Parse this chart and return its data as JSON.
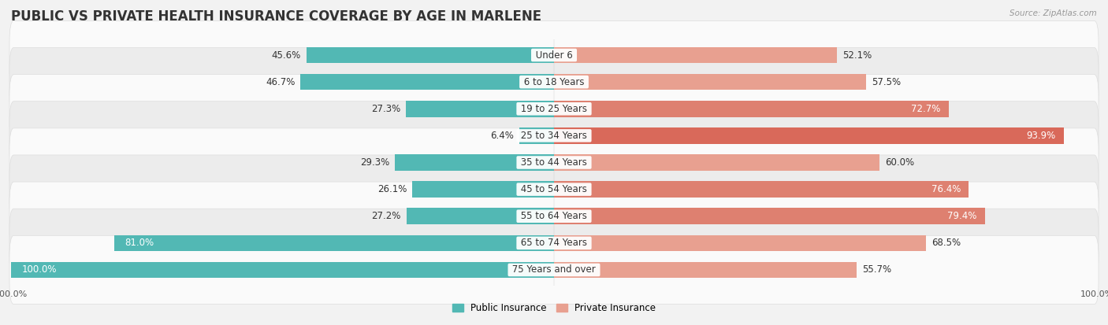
{
  "title": "PUBLIC VS PRIVATE HEALTH INSURANCE COVERAGE BY AGE IN MARLENE",
  "source": "Source: ZipAtlas.com",
  "categories": [
    "Under 6",
    "6 to 18 Years",
    "19 to 25 Years",
    "25 to 34 Years",
    "35 to 44 Years",
    "45 to 54 Years",
    "55 to 64 Years",
    "65 to 74 Years",
    "75 Years and over"
  ],
  "public_values": [
    45.6,
    46.7,
    27.3,
    6.4,
    29.3,
    26.1,
    27.2,
    81.0,
    100.0
  ],
  "private_values": [
    52.1,
    57.5,
    72.7,
    93.9,
    60.0,
    76.4,
    79.4,
    68.5,
    55.7
  ],
  "public_color": "#52b8b4",
  "private_color_light": "#e8a090",
  "private_color_dark": "#d9695a",
  "bg_color": "#f2f2f2",
  "row_bg_light": "#fafafa",
  "row_bg_dark": "#ececec",
  "max_value": 100.0,
  "title_fontsize": 12,
  "label_fontsize": 8.5,
  "value_fontsize": 8.5,
  "legend_fontsize": 8.5,
  "axis_label_fontsize": 8
}
